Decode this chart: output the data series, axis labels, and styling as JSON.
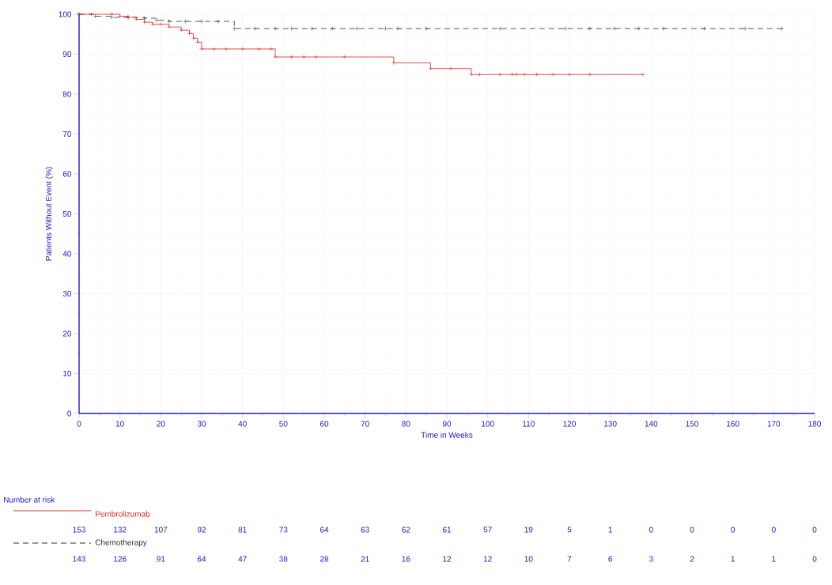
{
  "chart_data": {
    "type": "step",
    "xlabel": "Time in Weeks",
    "ylabel": "Patients Without Event (%)",
    "xlim": [
      0,
      180
    ],
    "ylim": [
      0,
      100
    ],
    "xticks": [
      0,
      10,
      20,
      30,
      40,
      50,
      60,
      70,
      80,
      90,
      100,
      110,
      120,
      130,
      140,
      150,
      160,
      170,
      180
    ],
    "yticks": [
      0,
      10,
      20,
      30,
      40,
      50,
      60,
      70,
      80,
      90,
      100
    ],
    "grid": true,
    "legend": "bottom",
    "marker": "cross",
    "series": [
      {
        "name": "Pembrolizumab",
        "color": "#e02828",
        "line_style": "solid",
        "x": [
          0,
          3,
          8,
          10,
          12,
          14,
          16,
          18,
          20,
          22,
          25,
          27,
          28,
          29,
          30,
          33,
          36,
          40,
          44,
          47,
          48,
          52,
          55,
          58,
          65,
          77,
          86,
          91,
          96,
          98,
          103,
          106,
          107,
          109,
          112,
          116,
          120,
          125,
          138
        ],
        "values": [
          100,
          100,
          100,
          99.5,
          99.3,
          98.7,
          98,
          97.5,
          97.5,
          96.8,
          96,
          95.2,
          94,
          93,
          91.3,
          91.3,
          91.3,
          91.3,
          91.3,
          91.3,
          89.3,
          89.3,
          89.3,
          89.3,
          89.3,
          87.8,
          86.4,
          86.4,
          84.9,
          84.9,
          84.9,
          84.9,
          84.9,
          84.9,
          84.9,
          84.9,
          84.9,
          84.9,
          84.9
        ]
      },
      {
        "name": "Chemotherapy",
        "color": "#303030",
        "line_style": "dashed",
        "x": [
          0,
          4,
          8,
          12,
          16,
          19,
          22,
          26,
          30,
          34,
          38,
          43,
          48,
          52,
          57,
          62,
          68,
          75,
          78,
          85,
          103,
          119,
          125,
          131,
          137,
          143,
          153,
          163,
          172
        ],
        "values": [
          100,
          99.5,
          99.2,
          99.2,
          99,
          98.5,
          98.2,
          98.2,
          98.2,
          98.2,
          96.4,
          96.4,
          96.4,
          96.4,
          96.4,
          96.4,
          96.4,
          96.4,
          96.4,
          96.4,
          96.4,
          96.4,
          96.4,
          96.4,
          96.4,
          96.4,
          96.4,
          96.4,
          96.4
        ]
      }
    ],
    "annotations": [
      "Number at risk",
      "153",
      "132",
      "107",
      "92",
      "81",
      "73",
      "64",
      "63",
      "62",
      "61",
      "57",
      "19",
      "5",
      "1",
      "0",
      "0",
      "0",
      "0",
      "0",
      "143",
      "126",
      "91",
      "64",
      "47",
      "38",
      "28",
      "21",
      "16",
      "12",
      "12",
      "10",
      "7",
      "6",
      "3",
      "2",
      "1",
      "1",
      "0"
    ]
  }
}
